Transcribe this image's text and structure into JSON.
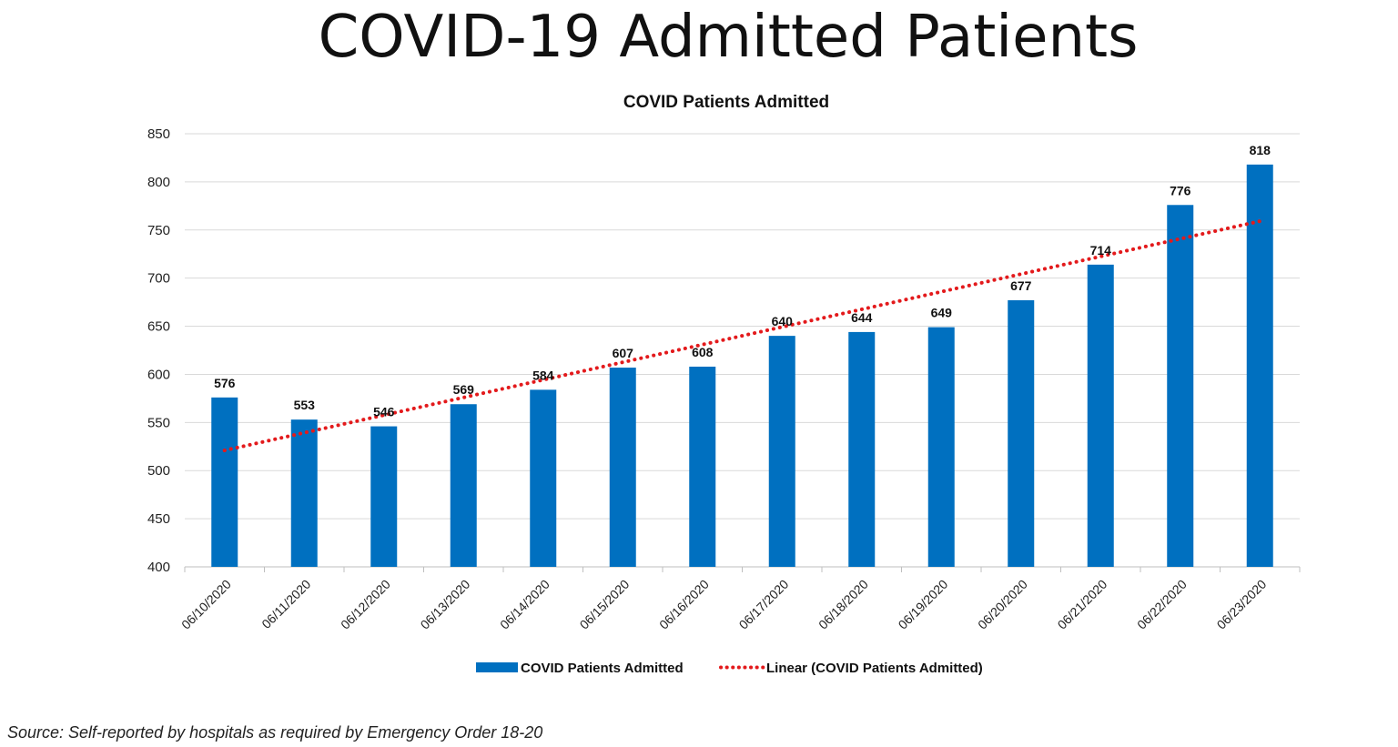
{
  "page": {
    "title": "COVID-19 Admitted Patients",
    "source": "Source: Self-reported by hospitals as required by Emergency Order 18-20"
  },
  "colors": {
    "bar": "#0070c0",
    "trend": "#e31a1c",
    "grid": "#d9d9d9",
    "axis_text": "#222222"
  },
  "chart_data": {
    "type": "bar",
    "title": "COVID Patients Admitted",
    "xlabel": "",
    "ylabel": "",
    "categories": [
      "06/10/2020",
      "06/11/2020",
      "06/12/2020",
      "06/13/2020",
      "06/14/2020",
      "06/15/2020",
      "06/16/2020",
      "06/17/2020",
      "06/18/2020",
      "06/19/2020",
      "06/20/2020",
      "06/21/2020",
      "06/22/2020",
      "06/23/2020"
    ],
    "series": [
      {
        "name": "COVID Patients Admitted",
        "values": [
          576,
          553,
          546,
          569,
          584,
          607,
          608,
          640,
          644,
          649,
          677,
          714,
          776,
          818
        ]
      }
    ],
    "trendline": {
      "name": "Linear (COVID Patients Admitted)",
      "type": "linear"
    },
    "ylim": [
      400,
      850
    ],
    "yticks": [
      400,
      450,
      500,
      550,
      600,
      650,
      700,
      750,
      800,
      850
    ],
    "grid": true,
    "legend_position": "bottom"
  }
}
